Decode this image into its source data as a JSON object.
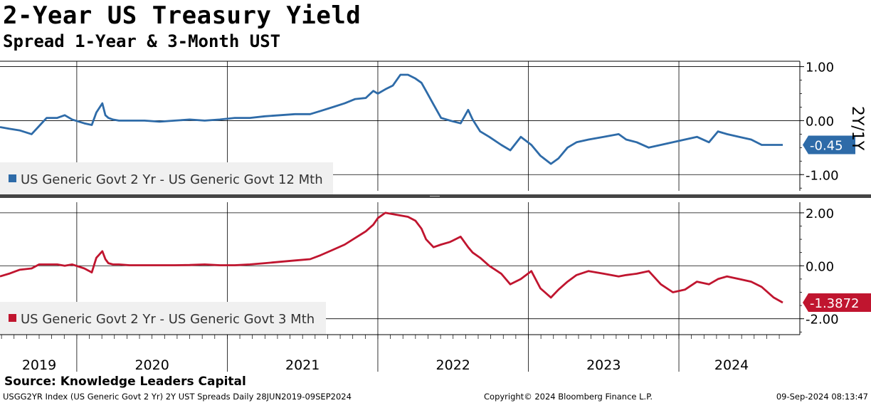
{
  "header": {
    "title": "2-Year US Treasury Yield",
    "subtitle": "Spread 1-Year & 3-Month UST"
  },
  "footer": {
    "source": "Source: Knowledge Leaders Capital",
    "security": "USGG2YR Index (US Generic Govt 2 Yr) 2Y UST Spreads  Daily 28JUN2019-09SEP2024",
    "copyright": "Copyright© 2024 Bloomberg Finance L.P.",
    "timestamp": "09-Sep-2024 08:13:47"
  },
  "chart_data": [
    {
      "type": "line",
      "panel": "top",
      "axis_title": "2Y/1Y",
      "legend": "US Generic Govt 2 Yr - US Generic Govt 12 Mth",
      "legend_placement": "bottom-left",
      "series_color": "#2E6BA8",
      "last_value_label": "-0.45",
      "ylim": [
        -1.3,
        1.1
      ],
      "yticks": [
        1.0,
        0.0,
        -1.0
      ],
      "ytick_labels": [
        "1.00",
        "0.00",
        "-1.00"
      ],
      "grid": true,
      "x": [
        2019.49,
        2019.55,
        2019.62,
        2019.7,
        2019.75,
        2019.8,
        2019.87,
        2019.92,
        2019.97,
        2020.05,
        2020.1,
        2020.13,
        2020.17,
        2020.19,
        2020.21,
        2020.24,
        2020.28,
        2020.35,
        2020.45,
        2020.55,
        2020.65,
        2020.75,
        2020.85,
        2020.95,
        2021.05,
        2021.15,
        2021.25,
        2021.35,
        2021.45,
        2021.55,
        2021.62,
        2021.7,
        2021.78,
        2021.85,
        2021.92,
        2021.97,
        2022.0,
        2022.05,
        2022.1,
        2022.15,
        2022.2,
        2022.25,
        2022.29,
        2022.32,
        2022.37,
        2022.42,
        2022.48,
        2022.55,
        2022.6,
        2022.63,
        2022.68,
        2022.74,
        2022.82,
        2022.88,
        2022.95,
        2023.02,
        2023.08,
        2023.15,
        2023.2,
        2023.26,
        2023.32,
        2023.4,
        2023.5,
        2023.6,
        2023.65,
        2023.72,
        2023.8,
        2023.88,
        2023.96,
        2024.04,
        2024.12,
        2024.2,
        2024.26,
        2024.32,
        2024.4,
        2024.48,
        2024.55,
        2024.63,
        2024.69
      ],
      "y": [
        -0.12,
        -0.15,
        -0.18,
        -0.25,
        -0.1,
        0.05,
        0.05,
        0.1,
        0.02,
        -0.05,
        -0.08,
        0.15,
        0.32,
        0.1,
        0.05,
        0.02,
        0.0,
        0.0,
        0.0,
        -0.02,
        0.0,
        0.02,
        0.0,
        0.02,
        0.05,
        0.05,
        0.08,
        0.1,
        0.12,
        0.12,
        0.18,
        0.25,
        0.32,
        0.4,
        0.42,
        0.55,
        0.5,
        0.58,
        0.65,
        0.85,
        0.85,
        0.78,
        0.7,
        0.55,
        0.3,
        0.05,
        0.0,
        -0.05,
        0.2,
        0.02,
        -0.2,
        -0.3,
        -0.45,
        -0.55,
        -0.3,
        -0.45,
        -0.65,
        -0.8,
        -0.7,
        -0.5,
        -0.4,
        -0.35,
        -0.3,
        -0.25,
        -0.35,
        -0.4,
        -0.5,
        -0.45,
        -0.4,
        -0.35,
        -0.3,
        -0.4,
        -0.2,
        -0.25,
        -0.3,
        -0.35,
        -0.45,
        -0.45,
        -0.45
      ]
    },
    {
      "type": "line",
      "panel": "bottom",
      "legend": "US Generic Govt 2 Yr - US Generic Govt 3 Mth",
      "legend_placement": "bottom-left",
      "series_color": "#C0152F",
      "last_value_label": "-1.3872",
      "ylim": [
        -2.6,
        2.4
      ],
      "yticks": [
        2.0,
        0.0,
        -2.0
      ],
      "ytick_labels": [
        "2.00",
        "0.00",
        "-2.00"
      ],
      "grid": true,
      "x": [
        2019.49,
        2019.55,
        2019.62,
        2019.7,
        2019.75,
        2019.8,
        2019.87,
        2019.92,
        2019.97,
        2020.05,
        2020.1,
        2020.13,
        2020.17,
        2020.19,
        2020.21,
        2020.24,
        2020.28,
        2020.35,
        2020.45,
        2020.55,
        2020.65,
        2020.75,
        2020.85,
        2020.95,
        2021.05,
        2021.15,
        2021.25,
        2021.35,
        2021.45,
        2021.55,
        2021.62,
        2021.7,
        2021.78,
        2021.85,
        2021.92,
        2021.97,
        2022.0,
        2022.05,
        2022.1,
        2022.15,
        2022.2,
        2022.25,
        2022.29,
        2022.32,
        2022.37,
        2022.42,
        2022.48,
        2022.55,
        2022.6,
        2022.63,
        2022.68,
        2022.74,
        2022.82,
        2022.88,
        2022.95,
        2023.02,
        2023.08,
        2023.15,
        2023.2,
        2023.26,
        2023.32,
        2023.4,
        2023.5,
        2023.6,
        2023.65,
        2023.72,
        2023.8,
        2023.88,
        2023.96,
        2024.04,
        2024.12,
        2024.2,
        2024.26,
        2024.32,
        2024.4,
        2024.48,
        2024.55,
        2024.63,
        2024.69
      ],
      "y": [
        -0.4,
        -0.3,
        -0.15,
        -0.1,
        0.05,
        0.05,
        0.05,
        0.0,
        0.05,
        -0.1,
        -0.25,
        0.3,
        0.55,
        0.25,
        0.1,
        0.05,
        0.05,
        0.02,
        0.02,
        0.02,
        0.02,
        0.03,
        0.05,
        0.02,
        0.02,
        0.05,
        0.1,
        0.15,
        0.2,
        0.25,
        0.4,
        0.6,
        0.8,
        1.05,
        1.3,
        1.55,
        1.8,
        2.0,
        1.95,
        1.9,
        1.85,
        1.7,
        1.4,
        1.0,
        0.7,
        0.8,
        0.9,
        1.1,
        0.7,
        0.5,
        0.3,
        0.0,
        -0.3,
        -0.7,
        -0.5,
        -0.2,
        -0.85,
        -1.2,
        -0.9,
        -0.6,
        -0.35,
        -0.2,
        -0.3,
        -0.4,
        -0.35,
        -0.3,
        -0.2,
        -0.7,
        -1.0,
        -0.9,
        -0.6,
        -0.7,
        -0.5,
        -0.4,
        -0.5,
        -0.6,
        -0.8,
        -1.2,
        -1.39
      ]
    }
  ],
  "x_axis": {
    "tick_labels": [
      "2019",
      "2020",
      "2021",
      "2022",
      "2023",
      "2024"
    ],
    "label_positions": [
      2019.75,
      2020.5,
      2021.5,
      2022.5,
      2023.5,
      2024.35
    ],
    "year_boundaries": [
      2020.0,
      2021.0,
      2022.0,
      2023.0,
      2024.0
    ],
    "xlim": [
      2019.49,
      2024.69
    ]
  }
}
